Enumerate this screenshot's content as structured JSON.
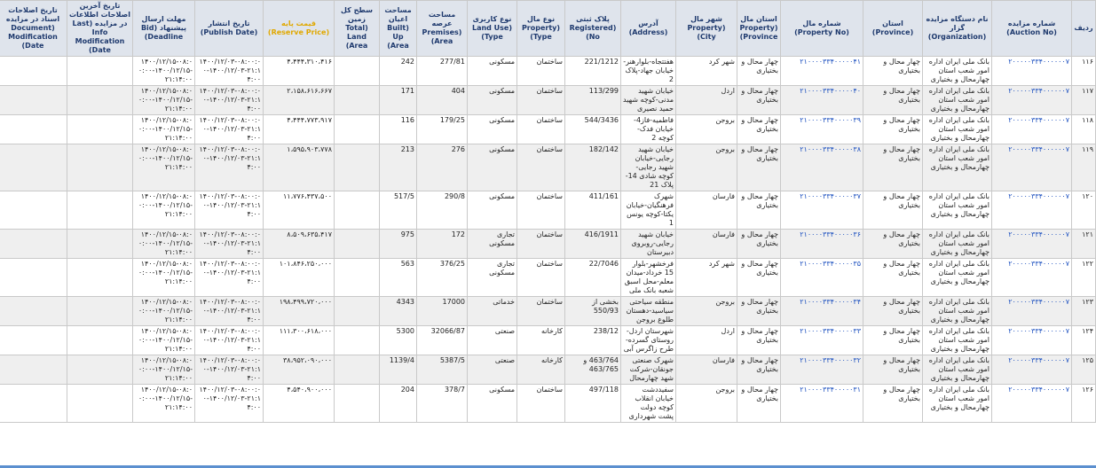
{
  "header": {
    "columns": [
      "ردیف",
      "شماره مزایده (Auction No)",
      "نام دستگاه مزایده گزار (Organization)",
      "استان (Province)",
      "شماره مال (Property No)",
      "استان مال (Property Province)",
      "شهر مال (Property City)",
      "آدرس (Address)",
      "پلاک ثبتی (Registered No)",
      "نوع مال (Property Type)",
      "نوع کاربری (Land Use Type)",
      "مساحت عرصه (Premises Area)",
      "مساحت اعیان (Built Up Area)",
      "سطح کل زمین (Total Land Area)",
      "قیمت پایه (Reserve Price)",
      "تاریخ انتشار (Publish Date)",
      "مهلت ارسال پیشنهاد (Bid Deadline)",
      "تاریخ آخرین اصلاحات اطلاعات در مزایده (Last Info Modification Date)",
      "تاریخ اصلاحات اسناد در مزایده (Document Modification Date)"
    ]
  },
  "table": {
    "rows": [
      {
        "row": "۱۱۶",
        "auction_no": "۲۰۰۰۰۰۳۳۴۰۰۰۰۰۰۷",
        "organization": "بانک ملی ایران اداره امور شعب استان چهارمحال و بختیاری",
        "province": "چهار محال و بختیاری",
        "property_no": "۲۱۰۰۰۰۳۳۴۰۰۰۰۰۴۱",
        "property_province": "چهار محال و بختیاری",
        "city": "شهر کرد",
        "address": "هفتتجاه-بلوارهنر-خیابان جهاد-پلاک 2",
        "registered_no": "221/1212",
        "property_type": "ساختمان",
        "land_use": "مسکونی",
        "premises_area": "277/81",
        "built_area": "242",
        "price": "۴،۴۴۴،۳۱۰،۴۱۶",
        "publish_date": "۱۴۰۰/۱۲/۰۳-۰۸:۰۰:۰۰-۱۴۰۰/۱۲/۰۳-۲۱:۱۴:۰۰",
        "deadline": "۱۴۰۰/۱۲/۱۵-۰۸:۰۰:۰۰-۱۴۰۰/۱۲/۱۵-۲۱:۱۴:۰۰"
      },
      {
        "row": "۱۱۷",
        "auction_no": "۲۰۰۰۰۰۳۳۴۰۰۰۰۰۰۷",
        "organization": "بانک ملی ایران اداره امور شعب استان چهارمحال و بختیاری",
        "province": "چهار محال و بختیاری",
        "property_no": "۲۱۰۰۰۰۳۳۴۰۰۰۰۰۴۰",
        "property_province": "چهار محال و بختیاری",
        "city": "اردل",
        "address": "خیابان شهید مدنی-کوچه شهید حمید نصیری",
        "registered_no": "113/299",
        "property_type": "ساختمان",
        "land_use": "مسکونی",
        "premises_area": "404",
        "built_area": "171",
        "price": "۲،۱۵۸،۶۱۶،۶۶۷",
        "publish_date": "۱۴۰۰/۱۲/۰۳-۰۸:۰۰:۰۰-۱۴۰۰/۱۲/۰۳-۲۱:۱۴:۰۰",
        "deadline": "۱۴۰۰/۱۲/۱۵-۰۸:۰۰:۰۰-۱۴۰۰/۱۲/۱۵-۲۱:۱۴:۰۰"
      },
      {
        "row": "۱۱۸",
        "auction_no": "۲۰۰۰۰۰۳۳۴۰۰۰۰۰۰۷",
        "organization": "بانک ملی ایران اداره امور شعب استان چهارمحال و بختیاری",
        "province": "چهار محال و بختیاری",
        "property_no": "۲۱۰۰۰۰۳۳۴۰۰۰۰۰۳۹",
        "property_province": "چهار محال و بختیاری",
        "city": "بروجن",
        "address": "فاطمیه-فاز4-خیابان فدک-کوچه 2",
        "registered_no": "544/3436",
        "property_type": "ساختمان",
        "land_use": "مسکونی",
        "premises_area": "179/25",
        "built_area": "116",
        "price": "۴،۴۴۴،۷۷۳،۹۱۷",
        "publish_date": "۱۴۰۰/۱۲/۰۳-۰۸:۰۰:۰۰-۱۴۰۰/۱۲/۰۳-۲۱:۱۴:۰۰",
        "deadline": "۱۴۰۰/۱۲/۱۵-۰۸:۰۰:۰۰-۱۴۰۰/۱۲/۱۵-۲۱:۱۴:۰۰"
      },
      {
        "row": "۱۱۹",
        "auction_no": "۲۰۰۰۰۰۳۳۴۰۰۰۰۰۰۷",
        "organization": "بانک ملی ایران اداره امور شعب استان چهارمحال و بختیاری",
        "province": "چهار محال و بختیاری",
        "property_no": "۲۱۰۰۰۰۳۳۴۰۰۰۰۰۳۸",
        "property_province": "چهار محال و بختیاری",
        "city": "بروجن",
        "address": "خیابان شهید رجایی-خیابان شهید رجایی-کوچه شادی 14-پلاک 21",
        "registered_no": "182/142",
        "property_type": "ساختمان",
        "land_use": "مسکونی",
        "premises_area": "276",
        "built_area": "213",
        "price": "۱،۵۹۵،۹۰۳،۷۷۸",
        "publish_date": "۱۴۰۰/۱۲/۰۳-۰۸:۰۰:۰۰-۱۴۰۰/۱۲/۰۳-۲۱:۱۴:۰۰",
        "deadline": "۱۴۰۰/۱۲/۱۵-۰۸:۰۰:۰۰-۱۴۰۰/۱۲/۱۵-۲۱:۱۴:۰۰"
      },
      {
        "row": "۱۲۰",
        "auction_no": "۲۰۰۰۰۰۳۳۴۰۰۰۰۰۰۷",
        "organization": "بانک ملی ایران اداره امور شعب استان چهارمحال و بختیاری",
        "province": "چهار محال و بختیاری",
        "property_no": "۲۱۰۰۰۰۳۳۴۰۰۰۰۰۳۷",
        "property_province": "چهار محال و بختیاری",
        "city": "فارسان",
        "address": "شهرک فرهنگیان-خیابان یکتا-کوچه یونس 1",
        "registered_no": "411/161",
        "property_type": "ساختمان",
        "land_use": "مسکونی",
        "premises_area": "290/8",
        "built_area": "517/5",
        "price": "۱۱،۷۷۶،۴۳۷،۵۰۰",
        "publish_date": "۱۴۰۰/۱۲/۰۳-۰۸:۰۰:۰۰-۱۴۰۰/۱۲/۰۳-۲۱:۱۴:۰۰",
        "deadline": "۱۴۰۰/۱۲/۱۵-۰۸:۰۰:۰۰-۱۴۰۰/۱۲/۱۵-۲۱:۱۴:۰۰"
      },
      {
        "row": "۱۲۱",
        "auction_no": "۲۰۰۰۰۰۳۳۴۰۰۰۰۰۰۷",
        "organization": "بانک ملی ایران اداره امور شعب استان چهارمحال و بختیاری",
        "province": "چهار محال و بختیاری",
        "property_no": "۲۱۰۰۰۰۳۳۴۰۰۰۰۰۳۶",
        "property_province": "چهار محال و بختیاری",
        "city": "فارسان",
        "address": "خیابان شهید رجایی-روبروی دبیرستان",
        "registered_no": "416/1911",
        "property_type": "ساختمان",
        "land_use": "تجاری مسکونی",
        "premises_area": "172",
        "built_area": "975",
        "price": "۸،۵۰۹،۶۳۵،۴۱۷",
        "publish_date": "۱۴۰۰/۱۲/۰۳-۰۸:۰۰:۰۰-۱۴۰۰/۱۲/۰۳-۲۱:۱۴:۰۰",
        "deadline": "۱۴۰۰/۱۲/۱۵-۰۸:۰۰:۰۰-۱۴۰۰/۱۲/۱۵-۲۱:۱۴:۰۰"
      },
      {
        "row": "۱۲۲",
        "auction_no": "۲۰۰۰۰۰۳۳۴۰۰۰۰۰۰۷",
        "organization": "بانک ملی ایران اداره امور شعب استان چهارمحال و بختیاری",
        "province": "چهار محال و بختیاری",
        "property_no": "۲۱۰۰۰۰۳۳۴۰۰۰۰۰۳۵",
        "property_province": "چهار محال و بختیاری",
        "city": "شهر کرد",
        "address": "فرخشهر-بلوار 15 خرداد-میدان معلم-محل اسبق شعبه بانک ملی",
        "registered_no": "22/7046",
        "property_type": "ساختمان",
        "land_use": "تجاری مسکونی",
        "premises_area": "376/25",
        "built_area": "563",
        "price": "۱۰۱،۸۴۶،۲۵۰،۰۰۰",
        "publish_date": "۱۴۰۰/۱۲/۰۳-۰۸:۰۰:۰۰-۱۴۰۰/۱۲/۰۳-۲۱:۱۴:۰۰",
        "deadline": "۱۴۰۰/۱۲/۱۵-۰۸:۰۰:۰۰-۱۴۰۰/۱۲/۱۵-۲۱:۱۴:۰۰"
      },
      {
        "row": "۱۲۳",
        "auction_no": "۲۰۰۰۰۰۳۳۴۰۰۰۰۰۰۷",
        "organization": "بانک ملی ایران اداره امور شعب استان چهارمحال و بختیاری",
        "province": "چهار محال و بختیاری",
        "property_no": "۲۱۰۰۰۰۳۳۴۰۰۰۰۰۳۴",
        "property_province": "چهار محال و بختیاری",
        "city": "بروجن",
        "address": "منطقه سیاحتی سیاسید-دهستان طلوع بروجن",
        "registered_no": "بخشی از 550/93",
        "property_type": "ساختمان",
        "land_use": "خدماتی",
        "premises_area": "17000",
        "built_area": "4343",
        "price": "۱۹۸،۴۹۹،۷۲۰،۰۰۰",
        "publish_date": "۱۴۰۰/۱۲/۰۳-۰۸:۰۰:۰۰-۱۴۰۰/۱۲/۰۳-۲۱:۱۴:۰۰",
        "deadline": "۱۴۰۰/۱۲/۱۵-۰۸:۰۰:۰۰-۱۴۰۰/۱۲/۱۵-۲۱:۱۴:۰۰"
      },
      {
        "row": "۱۲۴",
        "auction_no": "۲۰۰۰۰۰۳۳۴۰۰۰۰۰۰۷",
        "organization": "بانک ملی ایران اداره امور شعب استان چهارمحال و بختیاری",
        "province": "چهار محال و بختیاری",
        "property_no": "۲۱۰۰۰۰۳۳۴۰۰۰۰۰۳۳",
        "property_province": "چهار محال و بختیاری",
        "city": "اردل",
        "address": "شهرستان اردل-روستای گسرده-طرح زاگرس آبی",
        "registered_no": "238/12",
        "property_type": "کارخانه",
        "land_use": "صنعتی",
        "premises_area": "32066/87",
        "built_area": "5300",
        "price": "۱۱۱،۳۰۰،۶۱۸،۰۰۰",
        "publish_date": "۱۴۰۰/۱۲/۰۳-۰۸:۰۰:۰۰-۱۴۰۰/۱۲/۰۳-۲۱:۱۴:۰۰",
        "deadline": "۱۴۰۰/۱۲/۱۵-۰۸:۰۰:۰۰-۱۴۰۰/۱۲/۱۵-۲۱:۱۴:۰۰"
      },
      {
        "row": "۱۲۵",
        "auction_no": "۲۰۰۰۰۰۳۳۴۰۰۰۰۰۰۷",
        "organization": "بانک ملی ایران اداره امور شعب استان چهارمحال و بختیاری",
        "province": "چهار محال و بختیاری",
        "property_no": "۲۱۰۰۰۰۳۳۴۰۰۰۰۰۳۲",
        "property_province": "چهار محال و بختیاری",
        "city": "فارسان",
        "address": "شهرک صنعتی جونقان-شرکت شهد چهارمحال",
        "registered_no": "463/764 و 463/765",
        "property_type": "کارخانه",
        "land_use": "صنعتی",
        "premises_area": "5387/5",
        "built_area": "1139/4",
        "price": "۳۸،۹۵۲،۰۹۰،۰۰۰",
        "publish_date": "۱۴۰۰/۱۲/۰۳-۰۸:۰۰:۰۰-۱۴۰۰/۱۲/۰۳-۲۱:۱۴:۰۰",
        "deadline": "۱۴۰۰/۱۲/۱۵-۰۸:۰۰:۰۰-۱۴۰۰/۱۲/۱۵-۲۱:۱۴:۰۰"
      },
      {
        "row": "۱۲۶",
        "auction_no": "۲۰۰۰۰۰۳۳۴۰۰۰۰۰۰۷",
        "organization": "بانک ملی ایران اداره امور شعب استان چهارمحال و بختیاری",
        "province": "چهار محال و بختیاری",
        "property_no": "۲۱۰۰۰۰۳۳۴۰۰۰۰۰۳۱",
        "property_province": "چهار محال و بختیاری",
        "city": "بروجن",
        "address": "سفیددشت خیابان انقلاب کوچه دولت پشت شهرداری",
        "registered_no": "497/118",
        "property_type": "ساختمان",
        "land_use": "مسکونی",
        "premises_area": "378/7",
        "built_area": "204",
        "price": "۴،۵۴۰،۹۰۰،۰۰۰",
        "publish_date": "۱۴۰۰/۱۲/۰۳-۰۸:۰۰:۰۰-۱۴۰۰/۱۲/۰۳-۲۱:۱۴:۰۰",
        "deadline": "۱۴۰۰/۱۲/۱۵-۰۸:۰۰:۰۰-۱۴۰۰/۱۲/۱۵-۲۱:۱۴:۰۰"
      }
    ]
  }
}
